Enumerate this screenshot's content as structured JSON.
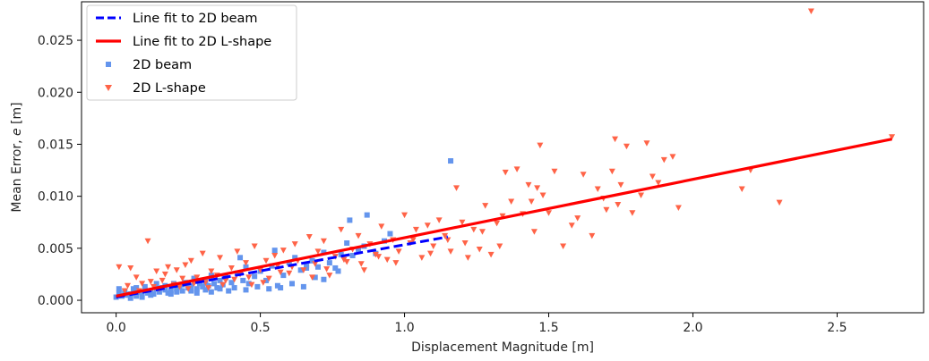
{
  "chart_data": {
    "type": "scatter",
    "xlabel": "Displacement Magnitude [m]",
    "ylabel_text": "Mean Error, ",
    "ylabel_var": "e",
    "ylabel_unit": " [m]",
    "xlim": [
      -0.12,
      2.8
    ],
    "ylim": [
      -0.0012,
      0.0287
    ],
    "xticks": [
      0.0,
      0.5,
      1.0,
      1.5,
      2.0,
      2.5
    ],
    "xtick_labels": [
      "0.0",
      "0.5",
      "1.0",
      "1.5",
      "2.0",
      "2.5"
    ],
    "yticks": [
      0.0,
      0.005,
      0.01,
      0.015,
      0.02,
      0.025
    ],
    "ytick_labels": [
      "0.000",
      "0.005",
      "0.010",
      "0.015",
      "0.020",
      "0.025"
    ],
    "grid": false,
    "legend_position": "top-left",
    "legend": [
      {
        "label": "Line fit to 2D beam",
        "kind": "dashed-line",
        "color": "#0000ff"
      },
      {
        "label": "Line fit to 2D L-shape",
        "kind": "solid-line",
        "color": "#ff0000"
      },
      {
        "label": "2D beam",
        "kind": "square-marker",
        "color": "#6495ed"
      },
      {
        "label": "2D L-shape",
        "kind": "triangle-marker",
        "color": "#ff6347"
      }
    ],
    "fits": [
      {
        "name": "Line fit to 2D beam",
        "x": [
          0.0,
          1.15
        ],
        "y": [
          0.0003,
          0.0061
        ],
        "color": "#0000ff",
        "style": "dashed"
      },
      {
        "name": "Line fit to 2D L-shape",
        "x": [
          0.0,
          2.69
        ],
        "y": [
          0.0004,
          0.0155
        ],
        "color": "#ff0000",
        "style": "solid"
      }
    ],
    "series": [
      {
        "name": "2D beam",
        "marker": "square",
        "color": "#6495ed",
        "points": [
          [
            0.0,
            0.0003
          ],
          [
            0.01,
            0.0007
          ],
          [
            0.02,
            0.0004
          ],
          [
            0.03,
            0.0009
          ],
          [
            0.04,
            0.0005
          ],
          [
            0.05,
            0.0006
          ],
          [
            0.06,
            0.0011
          ],
          [
            0.07,
            0.0004
          ],
          [
            0.08,
            0.0008
          ],
          [
            0.09,
            0.0006
          ],
          [
            0.1,
            0.0013
          ],
          [
            0.11,
            0.0007
          ],
          [
            0.12,
            0.0009
          ],
          [
            0.13,
            0.0006
          ],
          [
            0.14,
            0.0011
          ],
          [
            0.15,
            0.0008
          ],
          [
            0.16,
            0.0012
          ],
          [
            0.17,
            0.0014
          ],
          [
            0.18,
            0.0007
          ],
          [
            0.19,
            0.0009
          ],
          [
            0.2,
            0.0016
          ],
          [
            0.21,
            0.0011
          ],
          [
            0.22,
            0.0013
          ],
          [
            0.23,
            0.0009
          ],
          [
            0.24,
            0.0017
          ],
          [
            0.25,
            0.0012
          ],
          [
            0.26,
            0.0014
          ],
          [
            0.27,
            0.0021
          ],
          [
            0.28,
            0.0011
          ],
          [
            0.29,
            0.0016
          ],
          [
            0.3,
            0.0013
          ],
          [
            0.31,
            0.0018
          ],
          [
            0.32,
            0.0014
          ],
          [
            0.33,
            0.0024
          ],
          [
            0.34,
            0.0016
          ],
          [
            0.35,
            0.0012
          ],
          [
            0.36,
            0.0019
          ],
          [
            0.37,
            0.0015
          ],
          [
            0.38,
            0.0022
          ],
          [
            0.4,
            0.0017
          ],
          [
            0.42,
            0.0026
          ],
          [
            0.43,
            0.0041
          ],
          [
            0.44,
            0.0019
          ],
          [
            0.45,
            0.0032
          ],
          [
            0.46,
            0.0016
          ],
          [
            0.48,
            0.0023
          ],
          [
            0.5,
            0.0028
          ],
          [
            0.52,
            0.0019
          ],
          [
            0.54,
            0.0033
          ],
          [
            0.55,
            0.0048
          ],
          [
            0.56,
            0.0014
          ],
          [
            0.58,
            0.0024
          ],
          [
            0.6,
            0.0036
          ],
          [
            0.62,
            0.0041
          ],
          [
            0.64,
            0.0029
          ],
          [
            0.66,
            0.0034
          ],
          [
            0.68,
            0.0038
          ],
          [
            0.7,
            0.0032
          ],
          [
            0.72,
            0.0046
          ],
          [
            0.74,
            0.0036
          ],
          [
            0.76,
            0.0031
          ],
          [
            0.78,
            0.0044
          ],
          [
            0.8,
            0.0055
          ],
          [
            0.81,
            0.0077
          ],
          [
            0.82,
            0.0043
          ],
          [
            0.84,
            0.0049
          ],
          [
            0.86,
            0.0052
          ],
          [
            0.87,
            0.0082
          ],
          [
            0.9,
            0.0045
          ],
          [
            0.93,
            0.0057
          ],
          [
            0.95,
            0.0064
          ],
          [
            1.16,
            0.0134
          ],
          [
            0.01,
            0.0011
          ],
          [
            0.03,
            0.0006
          ],
          [
            0.05,
            0.0002
          ],
          [
            0.07,
            0.0012
          ],
          [
            0.09,
            0.0003
          ],
          [
            0.12,
            0.0005
          ],
          [
            0.14,
            0.0016
          ],
          [
            0.17,
            0.001
          ],
          [
            0.19,
            0.0006
          ],
          [
            0.21,
            0.0008
          ],
          [
            0.23,
            0.0015
          ],
          [
            0.26,
            0.0009
          ],
          [
            0.28,
            0.0007
          ],
          [
            0.31,
            0.001
          ],
          [
            0.33,
            0.0008
          ],
          [
            0.36,
            0.0011
          ],
          [
            0.39,
            0.0009
          ],
          [
            0.41,
            0.0012
          ],
          [
            0.45,
            0.001
          ],
          [
            0.49,
            0.0013
          ],
          [
            0.53,
            0.0011
          ],
          [
            0.57,
            0.0012
          ],
          [
            0.61,
            0.0016
          ],
          [
            0.65,
            0.0013
          ],
          [
            0.69,
            0.0022
          ],
          [
            0.72,
            0.002
          ],
          [
            0.66,
            0.0031
          ],
          [
            0.77,
            0.0028
          ]
        ]
      },
      {
        "name": "2D L-shape",
        "marker": "triangle",
        "color": "#ff6347",
        "points": [
          [
            0.01,
            0.0032
          ],
          [
            0.03,
            0.0009
          ],
          [
            0.05,
            0.0031
          ],
          [
            0.07,
            0.0022
          ],
          [
            0.09,
            0.0016
          ],
          [
            0.11,
            0.0057
          ],
          [
            0.12,
            0.0018
          ],
          [
            0.14,
            0.0028
          ],
          [
            0.15,
            0.0011
          ],
          [
            0.17,
            0.0025
          ],
          [
            0.18,
            0.0032
          ],
          [
            0.2,
            0.0015
          ],
          [
            0.21,
            0.0029
          ],
          [
            0.23,
            0.0021
          ],
          [
            0.24,
            0.0034
          ],
          [
            0.25,
            0.0011
          ],
          [
            0.26,
            0.0038
          ],
          [
            0.28,
            0.0022
          ],
          [
            0.3,
            0.0045
          ],
          [
            0.31,
            0.0017
          ],
          [
            0.33,
            0.0028
          ],
          [
            0.35,
            0.0024
          ],
          [
            0.36,
            0.0041
          ],
          [
            0.38,
            0.0019
          ],
          [
            0.4,
            0.0031
          ],
          [
            0.42,
            0.0047
          ],
          [
            0.43,
            0.0025
          ],
          [
            0.45,
            0.0036
          ],
          [
            0.47,
            0.0015
          ],
          [
            0.48,
            0.0052
          ],
          [
            0.5,
            0.0029
          ],
          [
            0.52,
            0.0038
          ],
          [
            0.53,
            0.0021
          ],
          [
            0.55,
            0.0043
          ],
          [
            0.56,
            0.0033
          ],
          [
            0.58,
            0.0048
          ],
          [
            0.6,
            0.0026
          ],
          [
            0.62,
            0.0054
          ],
          [
            0.63,
            0.0038
          ],
          [
            0.65,
            0.0029
          ],
          [
            0.67,
            0.0061
          ],
          [
            0.69,
            0.0035
          ],
          [
            0.7,
            0.0047
          ],
          [
            0.72,
            0.0057
          ],
          [
            0.74,
            0.0024
          ],
          [
            0.76,
            0.0042
          ],
          [
            0.78,
            0.0068
          ],
          [
            0.8,
            0.0037
          ],
          [
            0.82,
            0.0049
          ],
          [
            0.84,
            0.0062
          ],
          [
            0.86,
            0.0029
          ],
          [
            0.88,
            0.0054
          ],
          [
            0.9,
            0.0044
          ],
          [
            0.92,
            0.0071
          ],
          [
            0.94,
            0.0039
          ],
          [
            0.96,
            0.0058
          ],
          [
            0.98,
            0.0047
          ],
          [
            1.0,
            0.0082
          ],
          [
            1.02,
            0.0055
          ],
          [
            1.04,
            0.0068
          ],
          [
            1.06,
            0.0041
          ],
          [
            1.08,
            0.0072
          ],
          [
            1.1,
            0.0052
          ],
          [
            1.12,
            0.0077
          ],
          [
            1.14,
            0.0062
          ],
          [
            1.16,
            0.0047
          ],
          [
            1.18,
            0.0108
          ],
          [
            1.2,
            0.0075
          ],
          [
            1.22,
            0.0041
          ],
          [
            1.24,
            0.0068
          ],
          [
            1.26,
            0.0049
          ],
          [
            1.28,
            0.0091
          ],
          [
            1.3,
            0.0044
          ],
          [
            1.32,
            0.0074
          ],
          [
            1.34,
            0.0081
          ],
          [
            1.35,
            0.0123
          ],
          [
            1.37,
            0.0095
          ],
          [
            1.39,
            0.0126
          ],
          [
            1.41,
            0.0083
          ],
          [
            1.43,
            0.0111
          ],
          [
            1.45,
            0.0066
          ],
          [
            1.47,
            0.0149
          ],
          [
            1.48,
            0.0101
          ],
          [
            1.5,
            0.0084
          ],
          [
            1.52,
            0.0124
          ],
          [
            1.55,
            0.0052
          ],
          [
            1.6,
            0.0079
          ],
          [
            1.62,
            0.0121
          ],
          [
            1.65,
            0.0062
          ],
          [
            1.67,
            0.0107
          ],
          [
            1.7,
            0.0087
          ],
          [
            1.72,
            0.0124
          ],
          [
            1.73,
            0.0155
          ],
          [
            1.75,
            0.0111
          ],
          [
            1.77,
            0.0148
          ],
          [
            1.79,
            0.0084
          ],
          [
            1.82,
            0.0101
          ],
          [
            1.84,
            0.0151
          ],
          [
            1.88,
            0.0113
          ],
          [
            1.9,
            0.0135
          ],
          [
            1.93,
            0.0138
          ],
          [
            1.95,
            0.0089
          ],
          [
            2.17,
            0.0107
          ],
          [
            2.2,
            0.0125
          ],
          [
            2.3,
            0.0094
          ],
          [
            2.41,
            0.0278
          ],
          [
            2.69,
            0.0157
          ],
          [
            0.04,
            0.0014
          ],
          [
            0.08,
            0.0009
          ],
          [
            0.13,
            0.0013
          ],
          [
            0.16,
            0.0019
          ],
          [
            0.22,
            0.0013
          ],
          [
            0.27,
            0.0016
          ],
          [
            0.32,
            0.0012
          ],
          [
            0.37,
            0.0015
          ],
          [
            0.41,
            0.002
          ],
          [
            0.46,
            0.0022
          ],
          [
            0.51,
            0.0017
          ],
          [
            0.57,
            0.0027
          ],
          [
            0.61,
            0.0032
          ],
          [
            0.68,
            0.0022
          ],
          [
            0.73,
            0.003
          ],
          [
            0.79,
            0.0039
          ],
          [
            0.85,
            0.0035
          ],
          [
            0.91,
            0.0042
          ],
          [
            0.97,
            0.0036
          ],
          [
            1.03,
            0.0058
          ],
          [
            1.09,
            0.0045
          ],
          [
            1.15,
            0.0058
          ],
          [
            1.21,
            0.0055
          ],
          [
            1.27,
            0.0066
          ],
          [
            1.33,
            0.0052
          ],
          [
            1.44,
            0.0095
          ],
          [
            1.58,
            0.0072
          ],
          [
            1.69,
            0.0098
          ],
          [
            1.74,
            0.0092
          ],
          [
            1.86,
            0.0119
          ],
          [
            1.46,
            0.0108
          ]
        ]
      }
    ]
  }
}
